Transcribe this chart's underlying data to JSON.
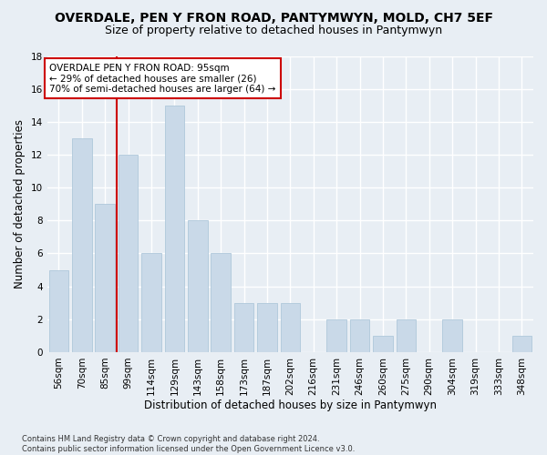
{
  "title": "OVERDALE, PEN Y FRON ROAD, PANTYMWYN, MOLD, CH7 5EF",
  "subtitle": "Size of property relative to detached houses in Pantymwyn",
  "xlabel": "Distribution of detached houses by size in Pantymwyn",
  "ylabel": "Number of detached properties",
  "categories": [
    "56sqm",
    "70sqm",
    "85sqm",
    "99sqm",
    "114sqm",
    "129sqm",
    "143sqm",
    "158sqm",
    "173sqm",
    "187sqm",
    "202sqm",
    "216sqm",
    "231sqm",
    "246sqm",
    "260sqm",
    "275sqm",
    "290sqm",
    "304sqm",
    "319sqm",
    "333sqm",
    "348sqm"
  ],
  "values": [
    5,
    13,
    9,
    12,
    6,
    15,
    8,
    6,
    3,
    3,
    3,
    0,
    2,
    2,
    1,
    2,
    0,
    2,
    0,
    0,
    1
  ],
  "bar_color": "#c9d9e8",
  "bar_edge_color": "#afc8db",
  "vline_color": "#cc0000",
  "annotation_text": "OVERDALE PEN Y FRON ROAD: 95sqm\n← 29% of detached houses are smaller (26)\n70% of semi-detached houses are larger (64) →",
  "annotation_box_color": "#ffffff",
  "annotation_box_edge": "#cc0000",
  "ylim": [
    0,
    18
  ],
  "yticks": [
    0,
    2,
    4,
    6,
    8,
    10,
    12,
    14,
    16,
    18
  ],
  "footnote": "Contains HM Land Registry data © Crown copyright and database right 2024.\nContains public sector information licensed under the Open Government Licence v3.0.",
  "background_color": "#e8eef4",
  "grid_color": "#ffffff",
  "title_fontsize": 10,
  "subtitle_fontsize": 9,
  "axis_label_fontsize": 8.5,
  "tick_fontsize": 7.5
}
